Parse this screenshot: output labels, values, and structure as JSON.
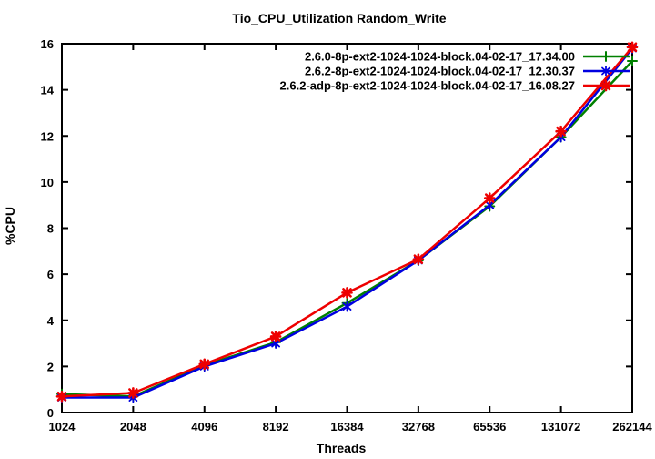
{
  "chart_data": {
    "type": "line",
    "title": "Tio_CPU_Utilization Random_Write",
    "xlabel": "Threads",
    "ylabel": "%CPU",
    "categories": [
      "1024",
      "2048",
      "4096",
      "8192",
      "16384",
      "32768",
      "65536",
      "131072",
      "262144"
    ],
    "ylim": [
      0,
      16
    ],
    "yticks": [
      0,
      2,
      4,
      6,
      8,
      10,
      12,
      14,
      16
    ],
    "grid": false,
    "legend_position": "top-right-inside",
    "background_color": "#ffffff",
    "axis_color": "#000000",
    "series": [
      {
        "name": "2.6.0-8p-ext2-1024-1024-block.04-02-17_17.34.00",
        "color": "#008000",
        "marker": "plus",
        "values": [
          0.8,
          0.7,
          2.05,
          3.05,
          4.75,
          6.6,
          8.95,
          11.95,
          15.25
        ]
      },
      {
        "name": "2.6.2-8p-ext2-1024-1024-block.04-02-17_12.30.37",
        "color": "#0000e0",
        "marker": "asterisk",
        "values": [
          0.65,
          0.65,
          2.0,
          3.0,
          4.6,
          6.6,
          9.0,
          11.95,
          15.8
        ]
      },
      {
        "name": "2.6.2-adp-8p-ext2-1024-1024-block.04-02-17_16.08.27",
        "color": "#ee0000",
        "marker": "star",
        "values": [
          0.7,
          0.85,
          2.1,
          3.3,
          5.2,
          6.65,
          9.3,
          12.2,
          15.85
        ]
      }
    ]
  }
}
